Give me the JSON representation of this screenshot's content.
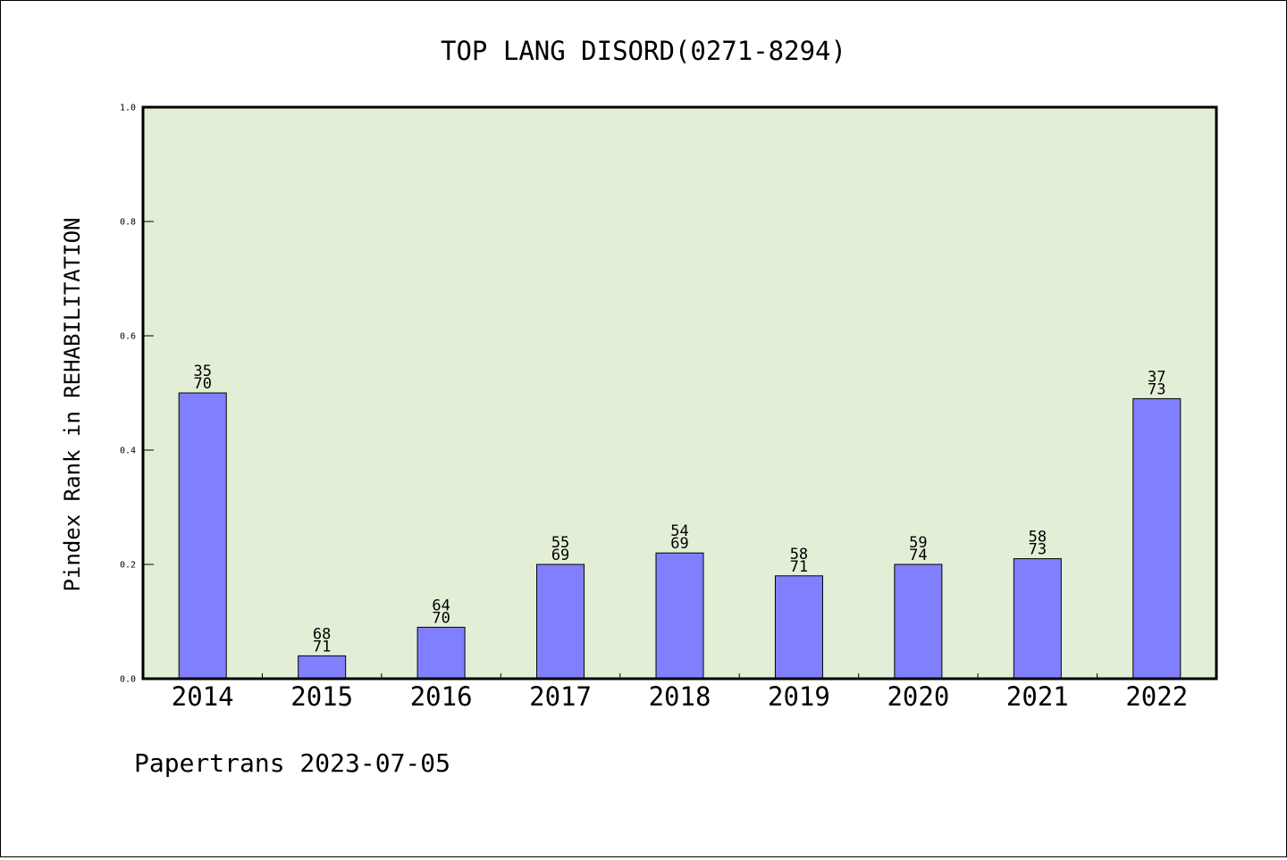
{
  "chart_data": {
    "type": "bar",
    "title": "TOP LANG DISORD(0271-8294)",
    "ylabel": "Pindex Rank in REHABILITATION",
    "xlabel": "",
    "footer": "Papertrans 2023-07-05",
    "ylim": [
      0,
      1.0
    ],
    "yticks": [
      "0.0",
      "0.2",
      "0.4",
      "0.6",
      "0.8",
      "1.0"
    ],
    "categories": [
      "2014",
      "2015",
      "2016",
      "2017",
      "2018",
      "2019",
      "2020",
      "2021",
      "2022"
    ],
    "values": [
      0.5,
      0.04,
      0.09,
      0.2,
      0.22,
      0.18,
      0.2,
      0.21,
      0.49
    ],
    "bar_labels_top": [
      "35",
      "68",
      "64",
      "55",
      "54",
      "58",
      "59",
      "58",
      "37"
    ],
    "bar_labels_bottom": [
      "70",
      "71",
      "70",
      "69",
      "69",
      "71",
      "74",
      "73",
      "73"
    ],
    "grid": false,
    "colors": {
      "bar": "#8080ff",
      "plot_background": "#e2efd6",
      "bar_edge": "#000000"
    }
  }
}
